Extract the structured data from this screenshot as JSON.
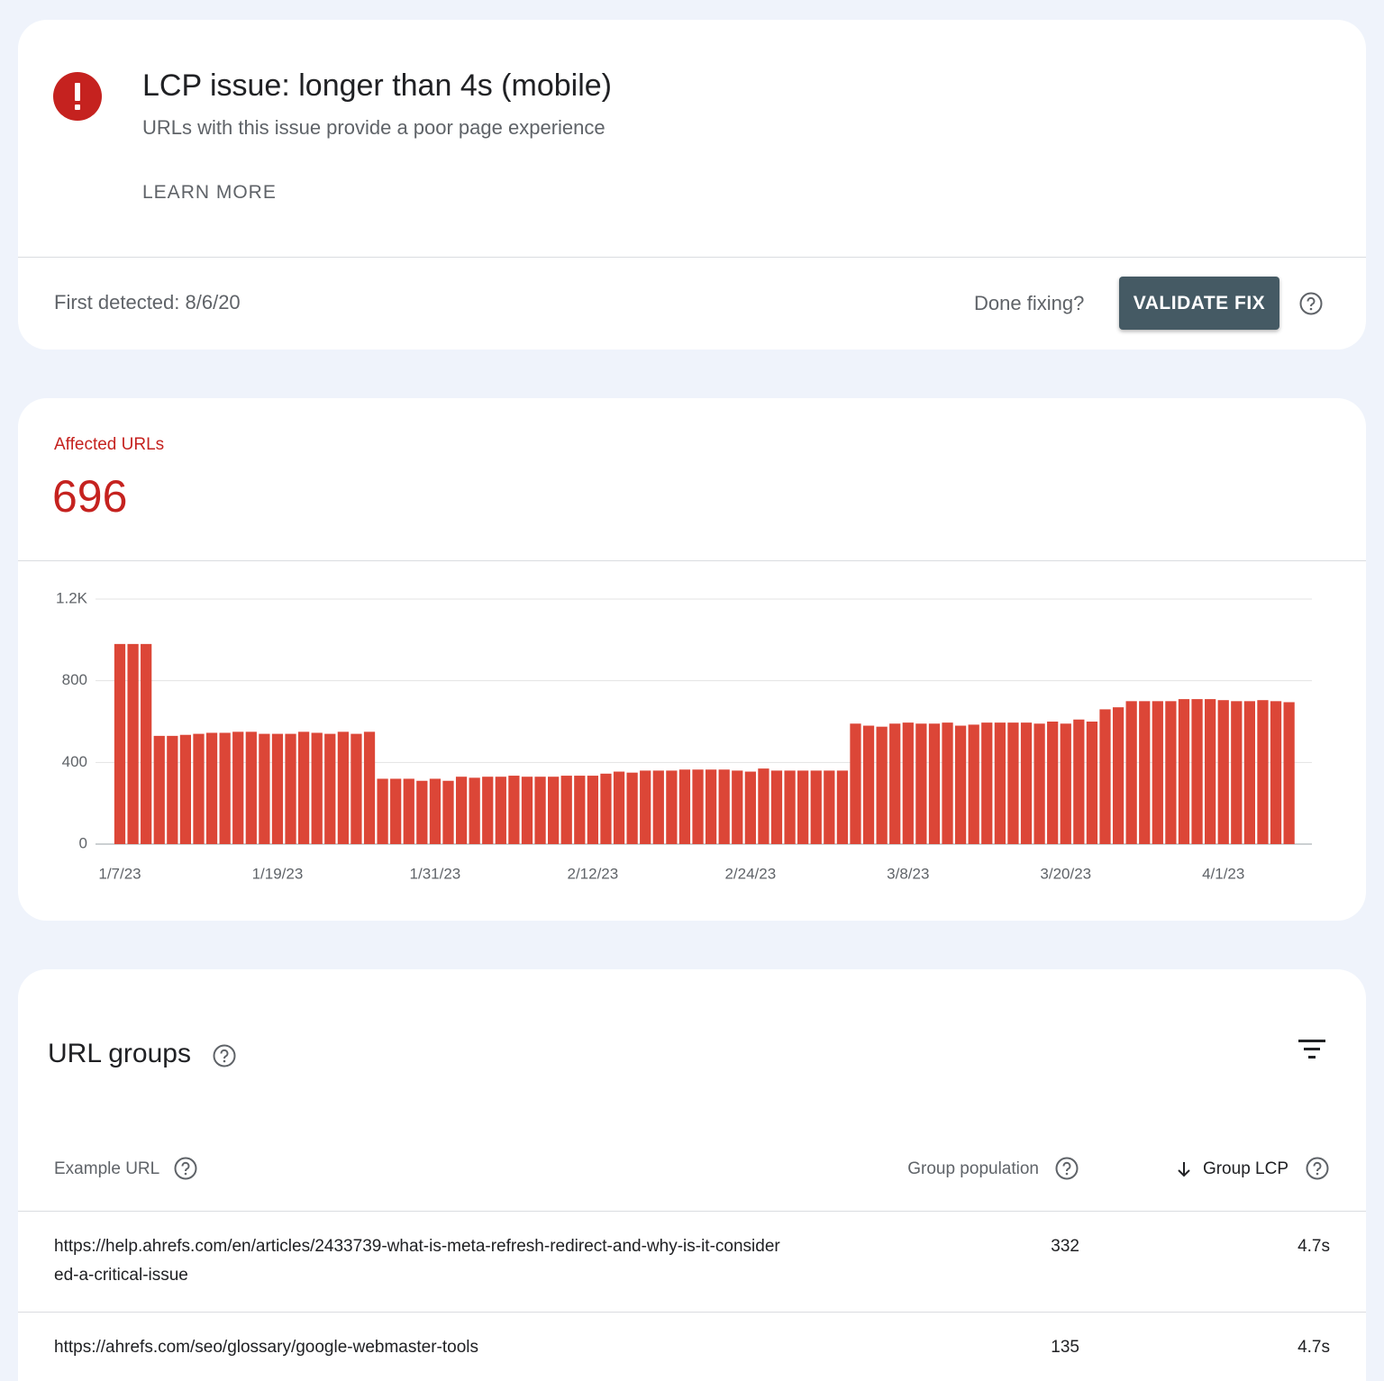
{
  "header": {
    "title": "LCP issue: longer than 4s (mobile)",
    "subtitle": "URLs with this issue provide a poor page experience",
    "learn_more": "LEARN MORE",
    "first_detected": "First detected: 8/6/20",
    "done_fixing": "Done fixing?",
    "validate_fix": "VALIDATE FIX"
  },
  "summary": {
    "label": "Affected URLs",
    "value": 696
  },
  "chart_data": {
    "type": "bar",
    "color": "#dc4637",
    "grid": true,
    "categories": [
      "1/7/23",
      null,
      null,
      null,
      null,
      null,
      null,
      null,
      null,
      null,
      null,
      null,
      "1/19/23",
      null,
      null,
      null,
      null,
      null,
      null,
      null,
      null,
      null,
      null,
      null,
      "1/31/23",
      null,
      null,
      null,
      null,
      null,
      null,
      null,
      null,
      null,
      null,
      null,
      "2/12/23",
      null,
      null,
      null,
      null,
      null,
      null,
      null,
      null,
      null,
      null,
      null,
      "2/24/23",
      null,
      null,
      null,
      null,
      null,
      null,
      null,
      null,
      null,
      null,
      null,
      "3/8/23",
      null,
      null,
      null,
      null,
      null,
      null,
      null,
      null,
      null,
      null,
      null,
      "3/20/23",
      null,
      null,
      null,
      null,
      null,
      null,
      null,
      null,
      null,
      null,
      null,
      "4/1/23",
      null,
      null,
      null,
      null,
      null
    ],
    "values": [
      980,
      980,
      980,
      530,
      530,
      535,
      540,
      545,
      545,
      550,
      550,
      540,
      540,
      540,
      550,
      545,
      540,
      550,
      540,
      550,
      320,
      320,
      320,
      310,
      320,
      310,
      330,
      325,
      330,
      330,
      335,
      330,
      330,
      330,
      335,
      335,
      335,
      345,
      355,
      350,
      360,
      360,
      360,
      365,
      365,
      365,
      365,
      360,
      355,
      370,
      360,
      360,
      360,
      360,
      360,
      360,
      590,
      580,
      575,
      590,
      595,
      590,
      590,
      595,
      580,
      585,
      595,
      595,
      595,
      595,
      590,
      600,
      590,
      610,
      600,
      660,
      670,
      700,
      700,
      700,
      700,
      710,
      710,
      710,
      705,
      700,
      700,
      705,
      700,
      695
    ],
    "ylim": [
      0,
      1200
    ],
    "yticks": [
      0,
      400,
      800,
      {
        "value": 1200,
        "label": "1.2K"
      }
    ]
  },
  "table": {
    "title": "URL groups",
    "columns": [
      "Example URL",
      "Group population",
      "Group LCP"
    ],
    "rows": [
      [
        "https://help.ahrefs.com/en/articles/2433739-what-is-meta-refresh-redirect-and-why-is-it-considered-a-critical-issue",
        332,
        "4.7s"
      ],
      [
        "https://ahrefs.com/seo/glossary/google-webmaster-tools",
        135,
        "4.7s"
      ]
    ]
  }
}
